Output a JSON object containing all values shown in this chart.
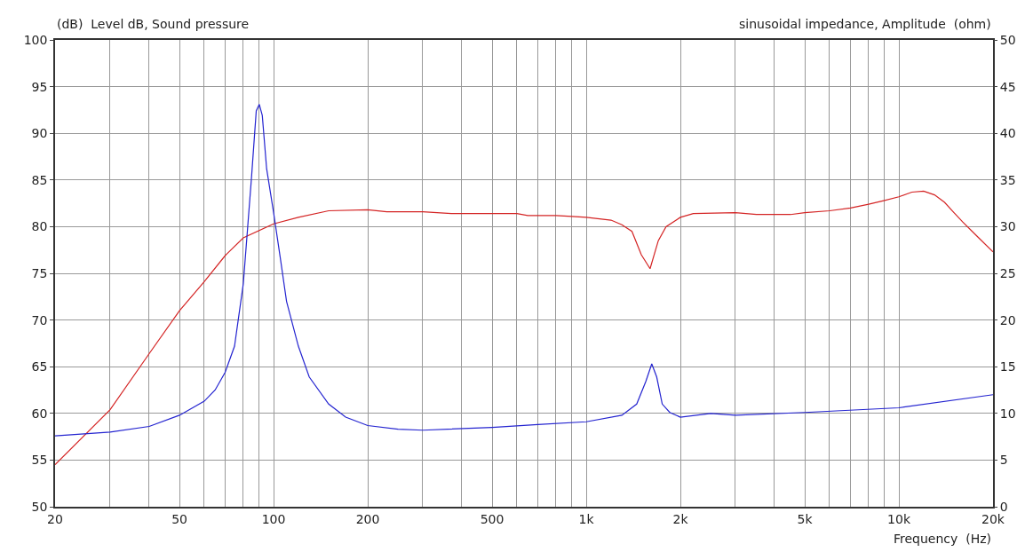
{
  "chart_data": {
    "type": "line",
    "ylabel": "(dB)  Level dB, Sound pressure",
    "y2label": "sinusoidal impedance, Amplitude  (ohm)",
    "xlabel": "Frequency  (Hz)",
    "log": "x",
    "grid": true,
    "xlim": [
      20,
      20000
    ],
    "xticks": [
      20,
      {
        "value": 30,
        "label": null
      },
      {
        "value": 40,
        "label": null
      },
      50,
      {
        "value": 60,
        "label": null
      },
      {
        "value": 70,
        "label": null
      },
      {
        "value": 80,
        "label": null
      },
      {
        "value": 90,
        "label": null
      },
      100,
      200,
      {
        "value": 300,
        "label": null
      },
      {
        "value": 400,
        "label": null
      },
      500,
      {
        "value": 600,
        "label": null
      },
      {
        "value": 700,
        "label": null
      },
      {
        "value": 800,
        "label": null
      },
      {
        "value": 900,
        "label": null
      },
      {
        "value": 1000,
        "label": "1k"
      },
      {
        "value": 2000,
        "label": "2k"
      },
      {
        "value": 3000,
        "label": null
      },
      {
        "value": 4000,
        "label": null
      },
      {
        "value": 5000,
        "label": "5k"
      },
      {
        "value": 6000,
        "label": null
      },
      {
        "value": 7000,
        "label": null
      },
      {
        "value": 8000,
        "label": null
      },
      {
        "value": 9000,
        "label": null
      },
      {
        "value": 10000,
        "label": "10k"
      },
      {
        "value": 20000,
        "label": "20k"
      }
    ],
    "ylim": [
      50,
      100
    ],
    "yticks": [
      50,
      55,
      60,
      65,
      70,
      75,
      80,
      85,
      90,
      95,
      100
    ],
    "y2lim": [
      0,
      50
    ],
    "y2ticks": [
      0,
      5,
      10,
      15,
      20,
      25,
      30,
      35,
      40,
      45,
      50
    ],
    "series": [
      {
        "color": "#d42424",
        "x": [
          20,
          30,
          40,
          50,
          60,
          70,
          80,
          100,
          120,
          150,
          200,
          230,
          300,
          370,
          600,
          650,
          800,
          900,
          1000,
          1200,
          1300,
          1400,
          1500,
          1600,
          1700,
          1800,
          2000,
          2200,
          3000,
          3500,
          4500,
          5000,
          6000,
          7000,
          8000,
          9000,
          10000,
          11000,
          12000,
          13000,
          14000,
          15000,
          16000,
          18000,
          20000
        ],
        "values": [
          54.5,
          60.4,
          66.4,
          71,
          74.1,
          76.9,
          78.8,
          80.3,
          81,
          81.7,
          81.8,
          81.6,
          81.6,
          81.4,
          81.4,
          81.2,
          81.2,
          81.1,
          81,
          80.7,
          80.2,
          79.5,
          77,
          75.5,
          78.5,
          80,
          81,
          81.4,
          81.5,
          81.3,
          81.3,
          81.5,
          81.7,
          82,
          82.4,
          82.8,
          83.2,
          83.7,
          83.8,
          83.4,
          82.6,
          81.5,
          80.5,
          78.8,
          77.3
        ]
      },
      {
        "color": "#2424d0",
        "axis": "y2",
        "x": [
          20,
          30,
          40,
          50,
          60,
          65,
          70,
          75,
          80,
          85,
          88,
          90,
          92,
          95,
          100,
          105,
          110,
          120,
          130,
          150,
          170,
          200,
          250,
          300,
          500,
          700,
          1000,
          1300,
          1450,
          1550,
          1620,
          1680,
          1750,
          1850,
          2000,
          2500,
          3000,
          5000,
          10000,
          20000
        ],
        "values": [
          7.6,
          8,
          8.6,
          9.8,
          11.3,
          12.5,
          14.4,
          17.2,
          23.9,
          35.3,
          42.4,
          43.1,
          41.9,
          36.2,
          31.5,
          26.7,
          22,
          17.2,
          13.9,
          11,
          9.6,
          8.7,
          8.3,
          8.2,
          8.5,
          8.8,
          9.1,
          9.8,
          11,
          13.4,
          15.3,
          13.9,
          11,
          10.1,
          9.6,
          10,
          9.8,
          10.1,
          10.6,
          12
        ]
      }
    ]
  }
}
